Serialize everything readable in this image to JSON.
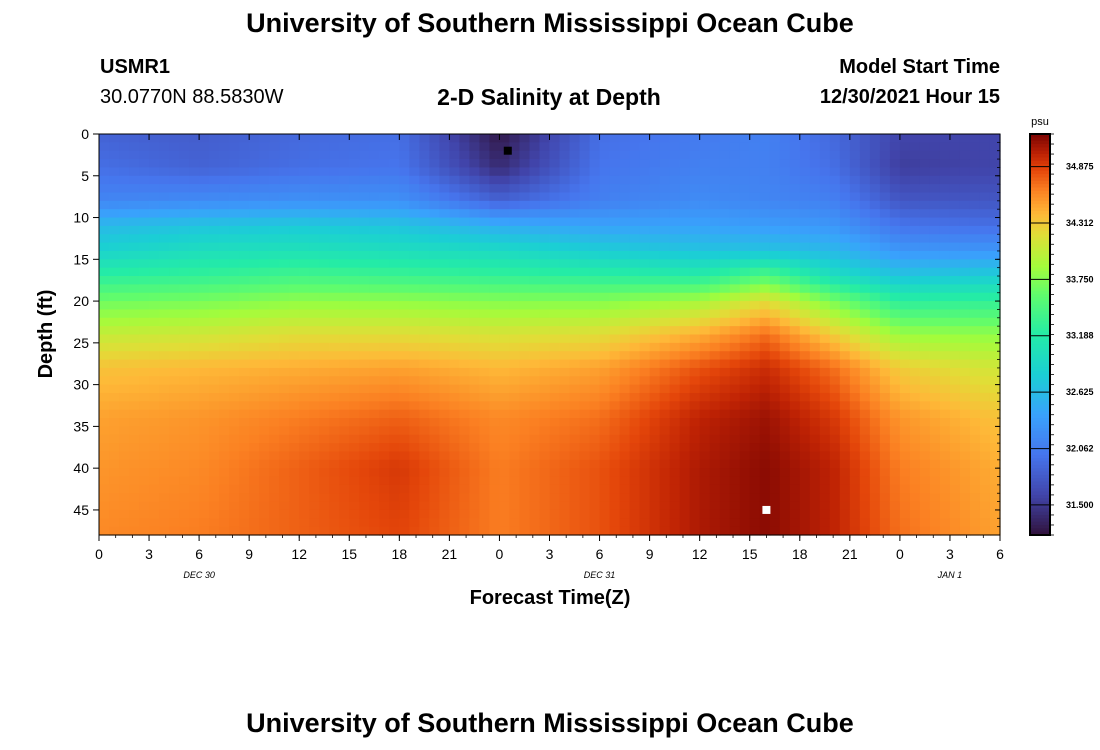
{
  "page": {
    "title_top": "University of Southern Mississippi Ocean Cube",
    "title_bottom": "University of Southern Mississippi Ocean Cube",
    "station_id": "USMR1",
    "station_coords": "30.0770N  88.5830W",
    "model_start_label": "Model Start Time",
    "model_start_value": "12/30/2021 Hour 15"
  },
  "chart_data": {
    "type": "heatmap",
    "title": "2-D Salinity at Depth",
    "xlabel": "Forecast Time(Z)",
    "ylabel": "Depth (ft)",
    "x_ticks": [
      "0",
      "3",
      "6",
      "9",
      "12",
      "15",
      "18",
      "21",
      "0",
      "3",
      "6",
      "9",
      "12",
      "15",
      "18",
      "21",
      "0",
      "3",
      "6"
    ],
    "x_hours_start": 0,
    "x_hours_end": 54,
    "date_labels": [
      {
        "label": "DEC 30",
        "hour": 6
      },
      {
        "label": "DEC 31",
        "hour": 30
      },
      {
        "label": "JAN 1",
        "hour": 51
      }
    ],
    "y_ticks": [
      0,
      5,
      10,
      15,
      20,
      25,
      30,
      35,
      40,
      45
    ],
    "ylim": [
      0,
      48
    ],
    "y_inverted": true,
    "colorbar": {
      "unit": "psu",
      "ticks": [
        34.875,
        34.312,
        33.75,
        33.188,
        32.625,
        32.062,
        31.5
      ],
      "range": [
        31.2,
        35.2
      ]
    },
    "markers": [
      {
        "name": "minimum",
        "hour": 24.5,
        "depth": 2,
        "color": "#000000"
      },
      {
        "name": "maximum",
        "hour": 40,
        "depth": 45,
        "color": "#ffffff"
      }
    ],
    "profile_hours": [
      0,
      6,
      12,
      18,
      24,
      30,
      36,
      40,
      44,
      48,
      54
    ],
    "profile_depths": [
      0,
      4,
      8,
      11,
      14,
      17,
      20,
      24,
      28,
      34,
      40,
      48
    ],
    "values": [
      [
        31.85,
        31.95,
        32.15,
        32.6,
        32.85,
        33.25,
        33.65,
        34.05,
        34.35,
        34.5,
        34.55,
        34.6
      ],
      [
        31.8,
        31.85,
        32.2,
        32.7,
        33.0,
        33.3,
        33.7,
        34.1,
        34.4,
        34.55,
        34.6,
        34.65
      ],
      [
        31.9,
        31.95,
        32.25,
        32.75,
        33.05,
        33.4,
        33.8,
        34.2,
        34.45,
        34.65,
        34.75,
        34.75
      ],
      [
        31.95,
        32.0,
        32.25,
        32.7,
        33.0,
        33.35,
        33.8,
        34.2,
        34.5,
        34.75,
        34.9,
        34.85
      ],
      [
        31.25,
        31.4,
        31.85,
        32.5,
        32.95,
        33.3,
        33.75,
        34.15,
        34.4,
        34.6,
        34.65,
        34.65
      ],
      [
        31.95,
        32.0,
        32.1,
        32.4,
        32.8,
        33.25,
        33.75,
        34.2,
        34.5,
        34.7,
        34.8,
        34.8
      ],
      [
        32.05,
        32.1,
        32.2,
        32.4,
        32.7,
        33.2,
        33.9,
        34.45,
        34.8,
        35.0,
        35.05,
        35.05
      ],
      [
        32.1,
        32.1,
        32.15,
        32.35,
        32.7,
        33.5,
        34.2,
        34.7,
        34.95,
        35.1,
        35.15,
        35.15
      ],
      [
        31.9,
        31.95,
        32.1,
        32.3,
        32.6,
        33.0,
        33.7,
        34.3,
        34.7,
        34.9,
        35.0,
        35.0
      ],
      [
        31.6,
        31.55,
        31.75,
        32.0,
        32.3,
        32.7,
        33.25,
        33.85,
        34.3,
        34.55,
        34.65,
        34.7
      ],
      [
        31.6,
        31.6,
        31.75,
        31.95,
        32.3,
        32.8,
        33.3,
        33.8,
        34.1,
        34.35,
        34.45,
        34.5
      ]
    ]
  }
}
